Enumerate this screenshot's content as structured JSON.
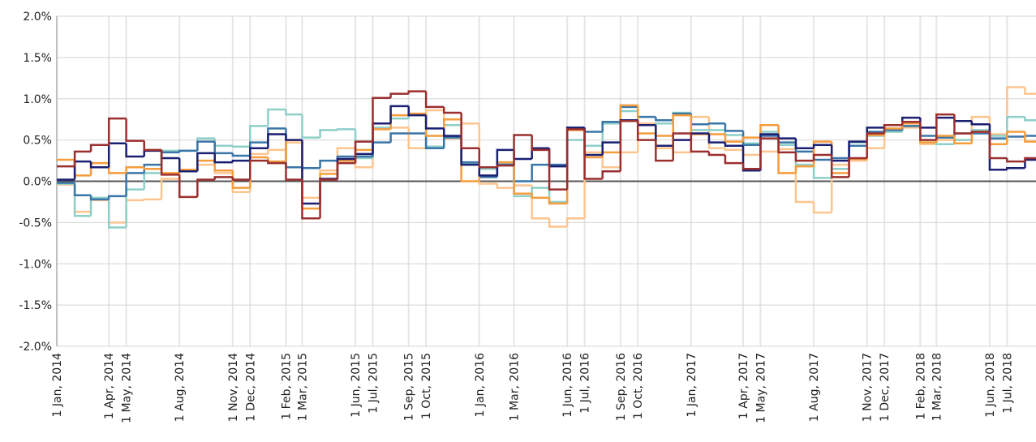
{
  "chart_data": {
    "type": "step",
    "x": [
      "2014-01-01",
      "2014-02-01",
      "2014-03-01",
      "2014-04-01",
      "2014-05-01",
      "2014-06-01",
      "2014-07-01",
      "2014-08-01",
      "2014-09-01",
      "2014-10-01",
      "2014-11-01",
      "2014-12-01",
      "2015-01-01",
      "2015-02-01",
      "2015-03-01",
      "2015-04-01",
      "2015-05-01",
      "2015-06-01",
      "2015-07-01",
      "2015-08-01",
      "2015-09-01",
      "2015-10-01",
      "2015-11-01",
      "2015-12-01",
      "2016-01-01",
      "2016-02-01",
      "2016-03-01",
      "2016-04-01",
      "2016-05-01",
      "2016-06-01",
      "2016-07-01",
      "2016-08-01",
      "2016-09-01",
      "2016-10-01",
      "2016-11-01",
      "2016-12-01",
      "2017-01-01",
      "2017-02-01",
      "2017-03-01",
      "2017-04-01",
      "2017-05-01",
      "2017-06-01",
      "2017-07-01",
      "2017-08-01",
      "2017-09-01",
      "2017-10-01",
      "2017-11-01",
      "2017-12-01",
      "2018-01-01",
      "2018-02-01",
      "2018-03-01",
      "2018-04-01",
      "2018-05-01",
      "2018-06-01",
      "2018-07-01",
      "2018-08-01"
    ],
    "xlim": [
      "2014-01-01",
      "2018-08-20"
    ],
    "xticks": [
      {
        "value": "2014-01-01",
        "label": "1 Jan, 2014"
      },
      {
        "value": "2014-04-01",
        "label": "1 Apr, 2014"
      },
      {
        "value": "2014-05-01",
        "label": "1 May, 2014"
      },
      {
        "value": "2014-08-01",
        "label": "1 Aug, 2014"
      },
      {
        "value": "2014-11-01",
        "label": "1 Nov, 2014"
      },
      {
        "value": "2014-12-01",
        "label": "1 Dec, 2014"
      },
      {
        "value": "2015-02-01",
        "label": "1 Feb, 2015"
      },
      {
        "value": "2015-03-01",
        "label": "1 Mar, 2015"
      },
      {
        "value": "2015-06-01",
        "label": "1 Jun, 2015"
      },
      {
        "value": "2015-07-01",
        "label": "1 Jul, 2015"
      },
      {
        "value": "2015-09-01",
        "label": "1 Sep, 2015"
      },
      {
        "value": "2015-10-01",
        "label": "1 Oct, 2015"
      },
      {
        "value": "2016-01-01",
        "label": "1 Jan, 2016"
      },
      {
        "value": "2016-03-01",
        "label": "1 Mar, 2016"
      },
      {
        "value": "2016-06-01",
        "label": "1 Jun, 2016"
      },
      {
        "value": "2016-07-01",
        "label": "1 Jul, 2016"
      },
      {
        "value": "2016-09-01",
        "label": "1 Sep, 2016"
      },
      {
        "value": "2016-10-01",
        "label": "1 Oct, 2016"
      },
      {
        "value": "2017-01-01",
        "label": "1 Jan, 2017"
      },
      {
        "value": "2017-04-01",
        "label": "1 Apr, 2017"
      },
      {
        "value": "2017-05-01",
        "label": "1 May, 2017"
      },
      {
        "value": "2017-08-01",
        "label": "1 Aug, 2017"
      },
      {
        "value": "2017-11-01",
        "label": "1 Nov, 2017"
      },
      {
        "value": "2017-12-01",
        "label": "1 Dec, 2017"
      },
      {
        "value": "2018-02-01",
        "label": "1 Feb, 2018"
      },
      {
        "value": "2018-03-01",
        "label": "1 Mar, 2018"
      },
      {
        "value": "2018-06-01",
        "label": "1 Jun, 2018"
      },
      {
        "value": "2018-07-01",
        "label": "1 Jul, 2018"
      }
    ],
    "ylim": [
      -2,
      2
    ],
    "yticks": [
      {
        "value": -2,
        "label": "-2.0%"
      },
      {
        "value": -1.5,
        "label": "-1.5%"
      },
      {
        "value": -1,
        "label": "-1.0%"
      },
      {
        "value": -0.5,
        "label": "-0.5%"
      },
      {
        "value": 0,
        "label": "0.0%"
      },
      {
        "value": 0.5,
        "label": "0.5%"
      },
      {
        "value": 1,
        "label": "1.0%"
      },
      {
        "value": 1.5,
        "label": "1.5%"
      },
      {
        "value": 2,
        "label": "2.0%"
      }
    ],
    "grid": true,
    "series": [
      {
        "color": "#fdc58e",
        "values": [
          -0.04,
          -0.37,
          -0.23,
          -0.5,
          -0.23,
          -0.22,
          0.03,
          0.12,
          0.2,
          0.1,
          -0.13,
          0.33,
          0.38,
          0.47,
          -0.2,
          0.13,
          0.4,
          0.17,
          0.7,
          0.65,
          0.4,
          0.86,
          0.52,
          0.7,
          -0.03,
          -0.08,
          -0.05,
          -0.45,
          -0.55,
          -0.45,
          0.35,
          0.17,
          0.35,
          0.7,
          0.4,
          0.35,
          0.78,
          0.4,
          0.38,
          0.32,
          0.36,
          0.39,
          -0.25,
          -0.38,
          0.2,
          0.25,
          0.4,
          0.6,
          0.65,
          0.45,
          0.5,
          0.5,
          0.78,
          0.57,
          1.14,
          1.06
        ]
      },
      {
        "color": "#8ecfc9",
        "values": [
          -0.03,
          -0.42,
          -0.2,
          -0.56,
          -0.1,
          0.1,
          0.37,
          0.37,
          0.52,
          0.43,
          0.42,
          0.67,
          0.87,
          0.81,
          0.53,
          0.62,
          0.63,
          0.28,
          0.65,
          0.76,
          0.81,
          0.42,
          0.68,
          0.21,
          0.15,
          0.22,
          -0.18,
          -0.08,
          -0.25,
          0.5,
          0.43,
          0.7,
          0.85,
          0.68,
          0.7,
          0.83,
          0.62,
          0.62,
          0.56,
          0.46,
          0.6,
          0.44,
          0.2,
          0.04,
          0.15,
          0.47,
          0.55,
          0.6,
          0.67,
          0.47,
          0.45,
          0.5,
          0.62,
          0.55,
          0.78,
          0.74
        ]
      },
      {
        "color": "#3a75a8",
        "values": [
          -0.02,
          -0.17,
          -0.22,
          -0.18,
          0.1,
          0.2,
          0.35,
          0.37,
          0.48,
          0.34,
          0.31,
          0.47,
          0.64,
          0.17,
          0.16,
          0.25,
          0.3,
          0.3,
          0.47,
          0.58,
          0.58,
          0.4,
          0.53,
          0.23,
          0.05,
          0.2,
          0.0,
          0.2,
          0.2,
          0.65,
          0.6,
          0.72,
          0.9,
          0.78,
          0.74,
          0.82,
          0.69,
          0.7,
          0.61,
          0.44,
          0.55,
          0.47,
          0.36,
          0.26,
          0.28,
          0.43,
          0.6,
          0.62,
          0.67,
          0.55,
          0.53,
          0.58,
          0.58,
          0.52,
          0.54,
          0.55
        ]
      },
      {
        "color": "#f59c3c",
        "values": [
          0.26,
          0.07,
          0.22,
          0.1,
          0.17,
          0.15,
          0.1,
          0.14,
          0.25,
          0.13,
          -0.08,
          0.29,
          0.24,
          0.5,
          -0.33,
          0.09,
          0.25,
          0.38,
          0.63,
          0.8,
          0.82,
          0.55,
          0.75,
          0.0,
          0.17,
          0.23,
          -0.15,
          -0.2,
          -0.27,
          0.62,
          0.29,
          0.35,
          0.92,
          0.58,
          0.55,
          0.8,
          0.57,
          0.57,
          0.48,
          0.53,
          0.68,
          0.1,
          0.18,
          0.48,
          0.1,
          0.27,
          0.56,
          0.64,
          0.7,
          0.47,
          0.55,
          0.46,
          0.6,
          0.45,
          0.6,
          0.48
        ]
      },
      {
        "color": "#1a1f71",
        "values": [
          0.02,
          0.24,
          0.17,
          0.46,
          0.3,
          0.37,
          0.28,
          0.12,
          0.34,
          0.23,
          0.25,
          0.4,
          0.57,
          0.5,
          -0.27,
          0.03,
          0.27,
          0.33,
          0.7,
          0.91,
          0.8,
          0.64,
          0.55,
          0.2,
          0.07,
          0.38,
          0.27,
          0.4,
          0.18,
          0.65,
          0.32,
          0.47,
          0.74,
          0.68,
          0.43,
          0.5,
          0.58,
          0.47,
          0.43,
          0.13,
          0.57,
          0.52,
          0.4,
          0.44,
          0.25,
          0.48,
          0.65,
          0.68,
          0.77,
          0.65,
          0.77,
          0.73,
          0.69,
          0.14,
          0.16,
          0.26
        ]
      },
      {
        "color": "#9b2f2f",
        "values": [
          0.18,
          0.36,
          0.44,
          0.76,
          0.49,
          0.38,
          0.08,
          -0.19,
          0.02,
          0.05,
          0.02,
          0.25,
          0.22,
          0.02,
          -0.45,
          0.02,
          0.22,
          0.48,
          1.01,
          1.06,
          1.09,
          0.9,
          0.83,
          0.4,
          0.17,
          0.19,
          0.56,
          0.38,
          -0.1,
          0.63,
          0.03,
          0.12,
          0.73,
          0.5,
          0.25,
          0.58,
          0.36,
          0.32,
          0.22,
          0.15,
          0.52,
          0.35,
          0.25,
          0.32,
          0.05,
          0.28,
          0.58,
          0.68,
          0.72,
          0.5,
          0.81,
          0.58,
          0.6,
          0.28,
          0.24,
          0.28
        ]
      }
    ]
  }
}
